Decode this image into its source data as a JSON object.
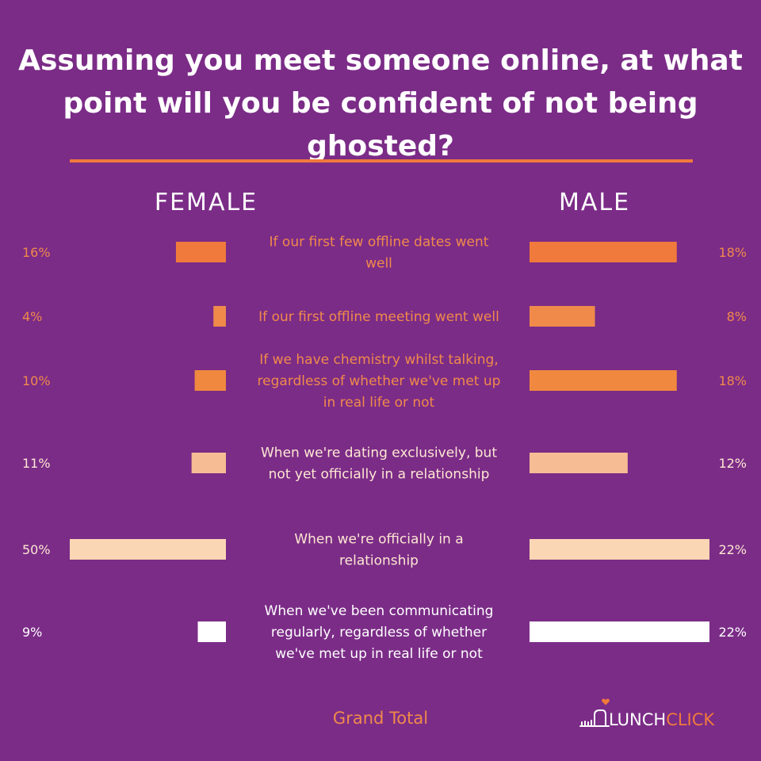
{
  "chart_data": {
    "type": "bar",
    "title": "Assuming you meet someone online, at what point will you be confident of not being ghosted?",
    "categories": [
      "If our first few offline dates went well",
      "If our first offline meeting went well",
      "If we have chemistry whilst talking, regardless of whether we've met up in real life or not",
      "When we're dating exclusively, but not yet officially in a relationship",
      "When we're officially in a relationship",
      "When we've been communicating regularly, regardless of whether we've met up in real life or not"
    ],
    "series": [
      {
        "name": "FEMALE",
        "values": [
          16,
          4,
          10,
          11,
          50,
          9
        ],
        "labels": [
          "16%",
          "4%",
          "10%",
          "11%",
          "50%",
          "9%"
        ]
      },
      {
        "name": "MALE",
        "values": [
          18,
          8,
          18,
          12,
          22,
          22
        ],
        "labels": [
          "18%",
          "8%",
          "18%",
          "12%",
          "22%",
          "22%"
        ]
      }
    ],
    "colors": [
      "#F07A3C",
      "#F08A4B",
      "#F0893F",
      "#F6BC94",
      "#FBD6B4",
      "#FFFFFF"
    ],
    "label_colors": [
      "#F08A4B",
      "#F08A4B",
      "#F08A4B",
      "#FDE7D2",
      "#FDE7D2",
      "#FFFFFF"
    ],
    "footer": "Grand Total",
    "legend": "column headers above bars"
  },
  "brand": {
    "logo_text_lunch": "LUNCH",
    "logo_text_click": "CLICK",
    "accent": "#F07A3C",
    "background": "#7B2C87"
  }
}
